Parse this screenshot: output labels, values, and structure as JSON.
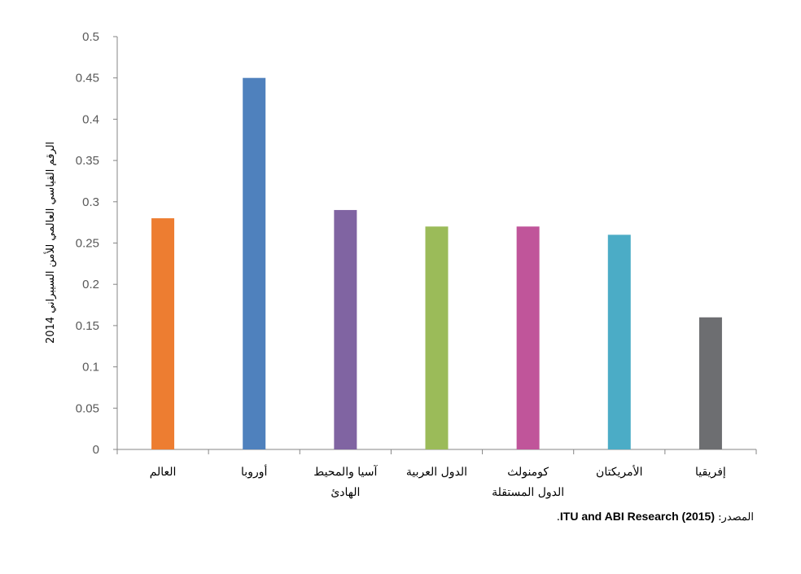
{
  "chart_data": {
    "type": "bar",
    "title": "",
    "ylabel": "الرقم القياسي العالمي للأمن السيبراني 2014",
    "xlabel": "",
    "ylim": [
      0,
      0.5
    ],
    "yticks": [
      "0",
      "0.05",
      "0.1",
      "0.15",
      "0.2",
      "0.25",
      "0.3",
      "0.35",
      "0.4",
      "0.45",
      "0.5"
    ],
    "categories": [
      [
        "العالم"
      ],
      [
        "أوروبا"
      ],
      [
        "آسيا والمحيط",
        "الهادئ"
      ],
      [
        "الدول العربية"
      ],
      [
        "كومنولث",
        "الدول المستقلة"
      ],
      [
        "الأمريكتان"
      ],
      [
        "إفريقيا"
      ]
    ],
    "values": [
      0.28,
      0.45,
      0.29,
      0.27,
      0.27,
      0.26,
      0.16
    ],
    "colors": [
      "#ED7D31",
      "#4F81BD",
      "#8064A2",
      "#9BBB59",
      "#C0559A",
      "#4BACC6",
      "#6D6E71"
    ],
    "grid": false,
    "legend": "none"
  },
  "source": {
    "prefix": "المصدر:",
    "text": "ITU and ABI Research (2015)",
    "suffix": "."
  }
}
